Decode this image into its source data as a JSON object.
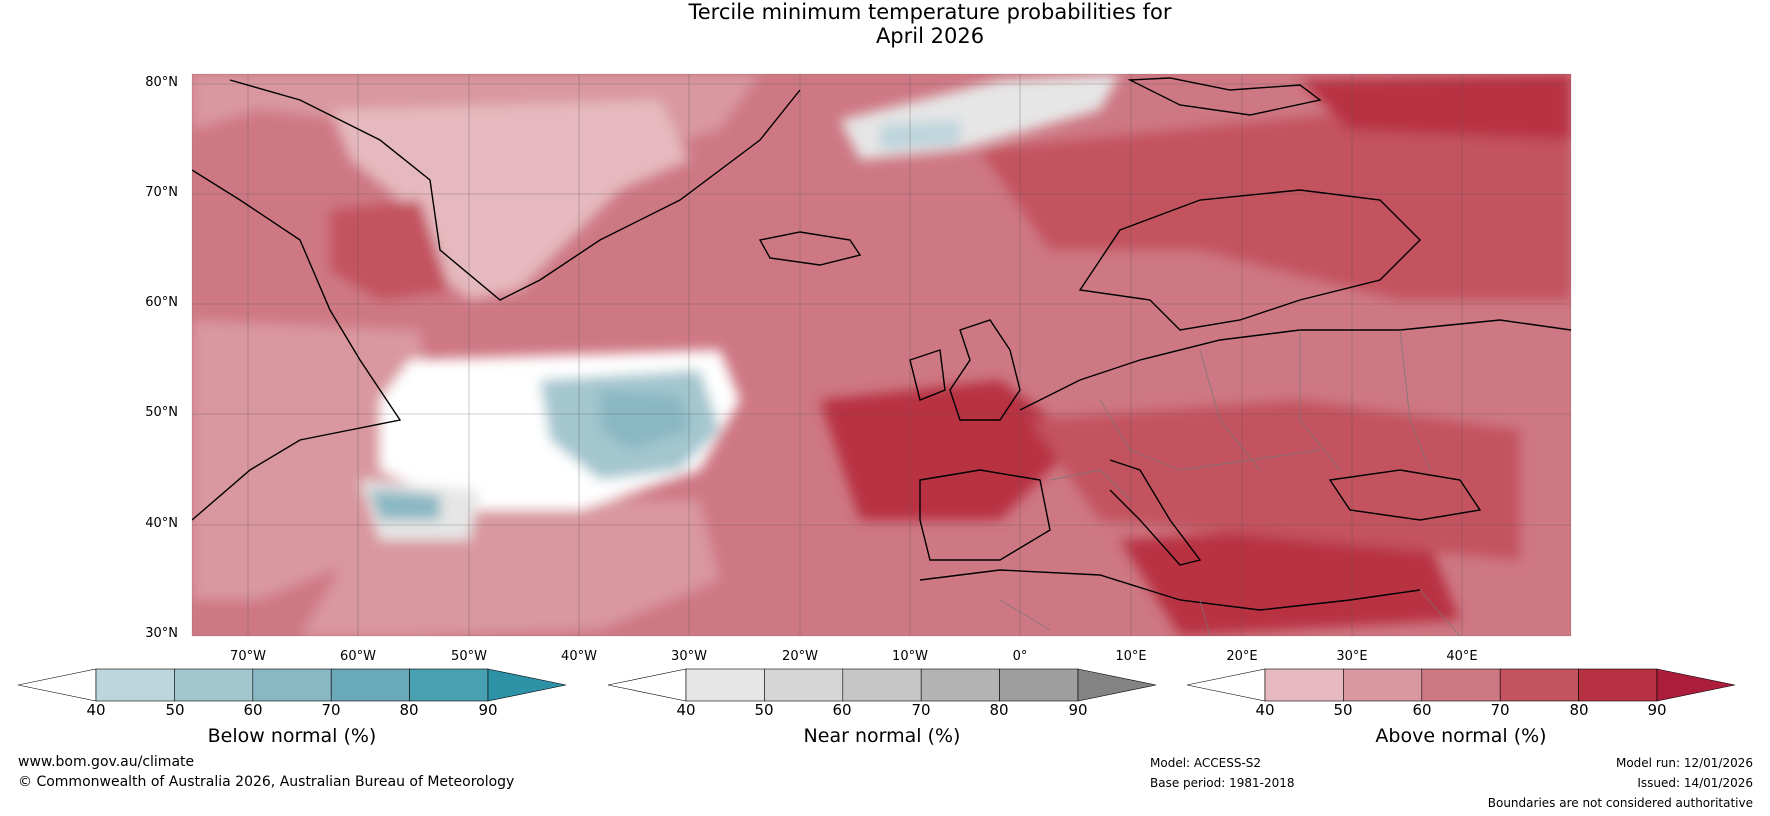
{
  "title": {
    "line1": "Tercile minimum temperature probabilities for",
    "line2": "April 2026"
  },
  "axes": {
    "lat_labels": [
      "80°N",
      "70°N",
      "60°N",
      "50°N",
      "40°N",
      "30°N"
    ],
    "lon_labels": [
      "70°W",
      "60°W",
      "50°W",
      "40°W",
      "30°W",
      "20°W",
      "10°W",
      "0°",
      "10°E",
      "20°E",
      "30°E",
      "40°E"
    ]
  },
  "colorbars": [
    {
      "name": "below",
      "title": "Below normal (%)",
      "ticks": [
        "40",
        "50",
        "60",
        "70",
        "80",
        "90"
      ],
      "colors": [
        "#ffffff",
        "#bdd5dc",
        "#a4c6cf",
        "#89b7c3",
        "#6aa9b8",
        "#48a0b0",
        "#2e92a7"
      ]
    },
    {
      "name": "near",
      "title": "Near normal (%)",
      "ticks": [
        "40",
        "50",
        "60",
        "70",
        "80",
        "90"
      ],
      "colors": [
        "#ffffff",
        "#e6e6e6",
        "#d6d6d6",
        "#c6c6c6",
        "#b3b3b3",
        "#9e9e9e",
        "#838383"
      ]
    },
    {
      "name": "above",
      "title": "Above normal (%)",
      "ticks": [
        "40",
        "50",
        "60",
        "70",
        "80",
        "90"
      ],
      "colors": [
        "#ffffff",
        "#e5b9bf",
        "#d9979f",
        "#ce7883",
        "#c3535f",
        "#b83143",
        "#ac1d3b"
      ]
    }
  ],
  "footer": {
    "website": "www.bom.gov.au/climate",
    "copyright": "© Commonwealth of Australia 2026, Australian Bureau of Meteorology",
    "model": "Model: ACCESS-S2",
    "base_period": "Base period: 1981-2018",
    "model_run": "Model run: 12/01/2026",
    "issued": "Issued: 14/01/2026",
    "disclaimer": "Boundaries are not considered authoritative"
  }
}
